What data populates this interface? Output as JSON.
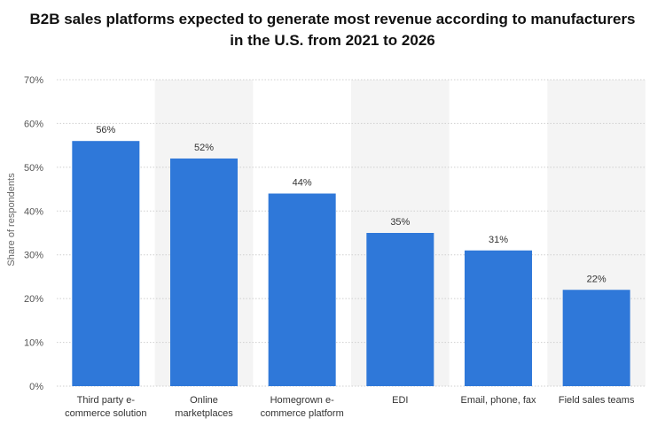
{
  "chart_data": {
    "type": "bar",
    "title_lines": [
      "B2B sales platforms expected to generate most revenue according to manufacturers",
      "in the U.S. from 2021 to 2026"
    ],
    "xlabel": "",
    "ylabel": "Share of respondents",
    "ylim": [
      0,
      70
    ],
    "yticks": [
      "0%",
      "10%",
      "20%",
      "30%",
      "40%",
      "50%",
      "60%",
      "70%"
    ],
    "categories": [
      [
        "Third party e-",
        "commerce solution"
      ],
      [
        "Online",
        "marketplaces"
      ],
      [
        "Homegrown e-",
        "commerce platform"
      ],
      [
        "EDI"
      ],
      [
        "Email, phone, fax"
      ],
      [
        "Field sales teams"
      ]
    ],
    "values": [
      56,
      52,
      44,
      35,
      31,
      22
    ],
    "value_labels": [
      "56%",
      "52%",
      "44%",
      "35%",
      "31%",
      "22%"
    ],
    "grid": true,
    "bar_color": "#2f78d9",
    "band_color": "#f4f4f4"
  }
}
